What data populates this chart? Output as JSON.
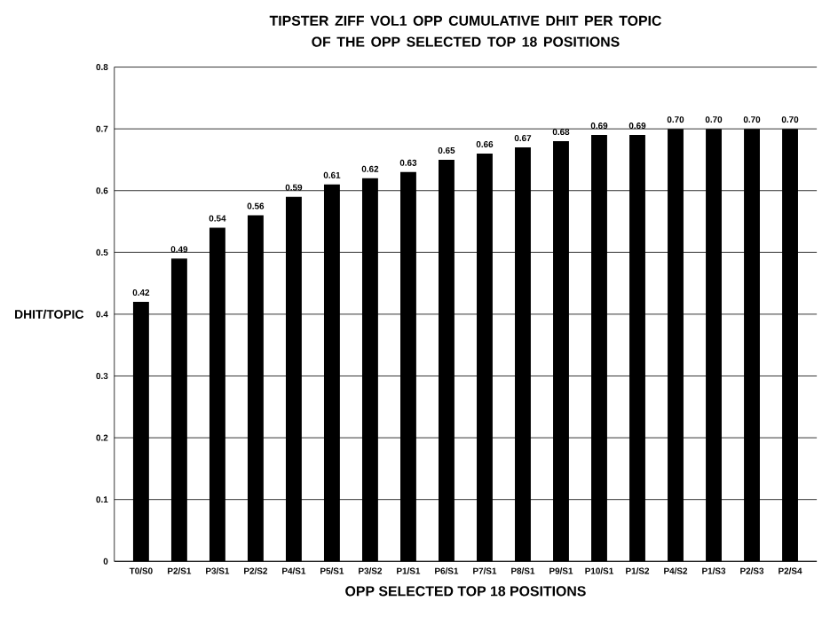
{
  "chart_data": {
    "type": "bar",
    "title": "TIPSTER ZIFF VOL1 OPP CUMULATIVE DHIT PER TOPIC\nOF THE OPP SELECTED TOP 18 POSITIONS",
    "xlabel": "OPP SELECTED TOP 18 POSITIONS",
    "ylabel": "DHIT/TOPIC",
    "categories": [
      "T0/S0",
      "P2/S1",
      "P3/S1",
      "P2/S2",
      "P4/S1",
      "P5/S1",
      "P3/S2",
      "P1/S1",
      "P6/S1",
      "P7/S1",
      "P8/S1",
      "P9/S1",
      "P10/S1",
      "P1/S2",
      "P4/S2",
      "P1/S3",
      "P2/S3",
      "P2/S4"
    ],
    "values": [
      0.42,
      0.49,
      0.54,
      0.56,
      0.59,
      0.61,
      0.62,
      0.63,
      0.65,
      0.66,
      0.67,
      0.68,
      0.69,
      0.69,
      0.7,
      0.7,
      0.7,
      0.7
    ],
    "value_labels": [
      "0.42",
      "0.49",
      "0.54",
      "0.56",
      "0.59",
      "0.61",
      "0.62",
      "0.63",
      "0.65",
      "0.66",
      "0.67",
      "0.68",
      "0.69",
      "0.69",
      "0.70",
      "0.70",
      "0.70",
      "0.70"
    ],
    "color": "#000000",
    "ylim": [
      0,
      0.8
    ],
    "yticks": [
      0,
      0.1,
      0.2,
      0.3,
      0.4,
      0.5,
      0.6,
      0.7,
      0.8
    ],
    "grid": "y"
  }
}
